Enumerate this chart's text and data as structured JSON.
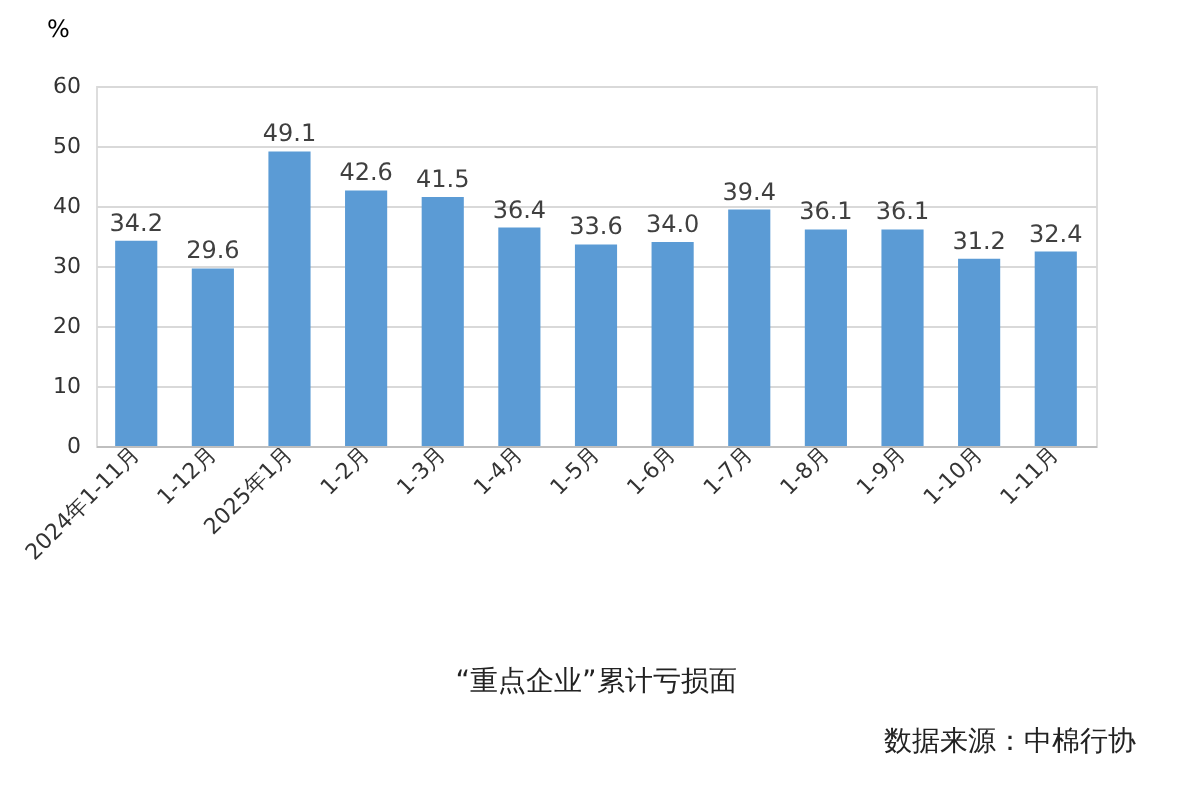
{
  "chart_data": {
    "type": "bar",
    "title": "“重点企业”累计亏损面",
    "ylabel": "%",
    "categories": [
      "2024年1-11月",
      "1-12月",
      "2025年1月",
      "1-2月",
      "1-3月",
      "1-4月",
      "1-5月",
      "1-6月",
      "1-7月",
      "1-8月",
      "1-9月",
      "1-10月",
      "1-11月"
    ],
    "values": [
      34.2,
      29.6,
      49.1,
      42.6,
      41.5,
      36.4,
      33.6,
      34.0,
      39.4,
      36.1,
      36.1,
      31.2,
      32.4
    ],
    "value_labels": [
      "34.2",
      "29.6",
      "49.1",
      "42.6",
      "41.5",
      "36.4",
      "33.6",
      "34.0",
      "39.4",
      "36.1",
      "36.1",
      "31.2",
      "32.4"
    ],
    "color": "#5b9bd5",
    "ylim": [
      0,
      60
    ],
    "yticks": [
      0,
      10,
      20,
      30,
      40,
      50,
      60
    ],
    "grid": "y",
    "annotations": [
      "数据来源：中棉行协"
    ]
  }
}
